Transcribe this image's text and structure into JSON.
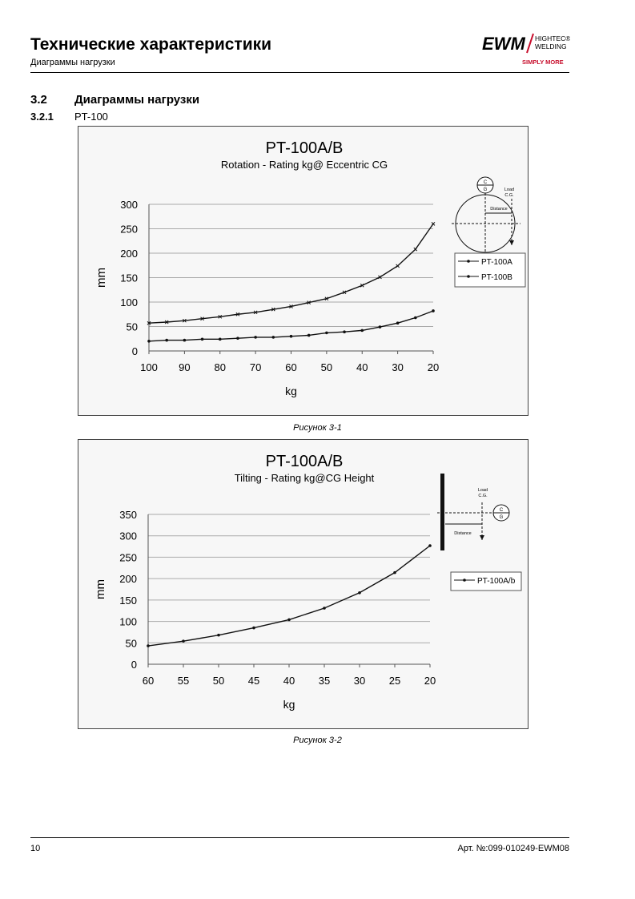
{
  "header": {
    "title": "Технические характеристики",
    "subtitle": "Диаграммы нагрузки",
    "logo": {
      "brand": "EWM",
      "line1": "HIGHTEC®",
      "line2": "WELDING",
      "tagline": "SIMPLY MORE",
      "accent": "#c8102e"
    }
  },
  "section": {
    "number": "3.2",
    "title": "Диаграммы нагрузки"
  },
  "subsection": {
    "number": "3.2.1",
    "title": "PT-100"
  },
  "figures": [
    {
      "caption": "Рисунок 3-1"
    },
    {
      "caption": "Рисунок 3-2"
    }
  ],
  "chart_data": [
    {
      "type": "line",
      "title": "PT-100A/B",
      "subtitle": "Rotation - Rating kg@ Eccentric CG",
      "xlabel": "kg",
      "ylabel": "mm",
      "x": [
        100,
        95,
        90,
        85,
        80,
        75,
        70,
        65,
        60,
        55,
        50,
        45,
        40,
        35,
        30,
        25,
        20
      ],
      "xticks": [
        100,
        90,
        80,
        70,
        60,
        50,
        40,
        30,
        20
      ],
      "xlim": [
        100,
        20
      ],
      "ylim": [
        0,
        300
      ],
      "yticks": [
        0,
        50,
        100,
        150,
        200,
        250,
        300
      ],
      "grid": true,
      "legend": "right",
      "series": [
        {
          "name": "PT-100A",
          "marker": "triangle",
          "values": [
            20,
            22,
            22,
            24,
            24,
            26,
            28,
            28,
            30,
            32,
            37,
            39,
            42,
            49,
            57,
            68,
            82
          ]
        },
        {
          "name": "PT-100B",
          "marker": "x",
          "values": [
            57,
            59,
            62,
            66,
            70,
            75,
            79,
            85,
            91,
            99,
            107,
            120,
            134,
            151,
            174,
            208,
            260
          ]
        }
      ],
      "diagram": {
        "labels": [
          "C",
          "G",
          "Load",
          "C.G.",
          "Distance"
        ]
      }
    },
    {
      "type": "line",
      "title": "PT-100A/B",
      "subtitle": "Tilting - Rating kg@CG Height",
      "xlabel": "kg",
      "ylabel": "mm",
      "x": [
        60,
        55,
        50,
        45,
        40,
        35,
        30,
        25,
        20
      ],
      "xticks": [
        60,
        55,
        50,
        45,
        40,
        35,
        30,
        25,
        20
      ],
      "xlim": [
        60,
        20
      ],
      "ylim": [
        0,
        350
      ],
      "yticks": [
        0,
        50,
        100,
        150,
        200,
        250,
        300,
        350
      ],
      "grid": true,
      "legend": "right",
      "series": [
        {
          "name": "PT-100A/b",
          "marker": "dot",
          "values": [
            43,
            54,
            68,
            85,
            104,
            131,
            167,
            214,
            277
          ]
        }
      ],
      "diagram": {
        "labels": [
          "C",
          "G",
          "Load",
          "C.G.",
          "Distance"
        ]
      }
    }
  ],
  "footer": {
    "page": "10",
    "article": "Арт. №:099-010249-EWM08"
  }
}
